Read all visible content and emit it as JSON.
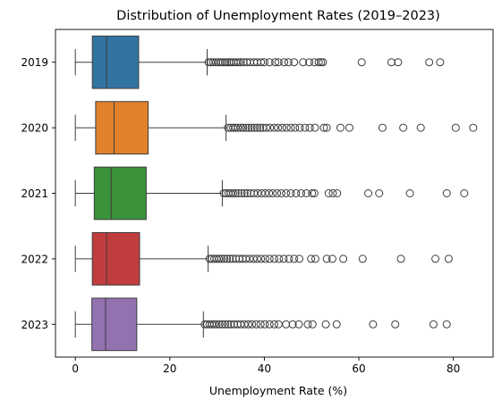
{
  "chart_data": {
    "type": "boxplot",
    "orientation": "horizontal",
    "title": "Distribution of Unemployment Rates (2019–2023)",
    "xlabel": "Unemployment Rate (%)",
    "ylabel": "",
    "xlim": [
      -4.2,
      88.4
    ],
    "xticks": [
      0,
      20,
      40,
      60,
      80
    ],
    "grid": false,
    "categories": [
      "2019",
      "2020",
      "2021",
      "2022",
      "2023"
    ],
    "series": [
      {
        "category": "2019",
        "color": "#3274a1",
        "whisker_low": 0,
        "q1": 3.6,
        "median": 6.6,
        "q3": 13.4,
        "whisker_high": 27.9,
        "outliers": [
          28.2,
          28.7,
          29.2,
          29.8,
          30.3,
          30.8,
          31.2,
          31.7,
          32.1,
          32.6,
          33.0,
          33.5,
          34.0,
          34.5,
          35.0,
          35.6,
          36.3,
          37.0,
          37.8,
          38.5,
          39.3,
          40.0,
          41.1,
          42.3,
          43.0,
          44.2,
          45.1,
          46.3,
          48.2,
          49.5,
          50.6,
          51.5,
          52.0,
          52.4,
          60.6,
          66.9,
          68.3,
          74.9,
          77.2
        ]
      },
      {
        "category": "2020",
        "color": "#e1812c",
        "whisker_low": 0,
        "q1": 4.3,
        "median": 8.2,
        "q3": 15.4,
        "whisker_high": 31.9,
        "outliers": [
          32.3,
          32.9,
          33.4,
          33.9,
          34.4,
          35.0,
          35.5,
          36.1,
          36.7,
          37.3,
          37.9,
          38.5,
          39.1,
          39.7,
          40.4,
          41.2,
          42.1,
          42.9,
          43.8,
          44.7,
          45.6,
          46.5,
          47.5,
          48.6,
          49.6,
          50.7,
          52.6,
          53.2,
          56.1,
          58.0,
          65.0,
          69.4,
          73.1,
          80.5,
          84.2
        ]
      },
      {
        "category": "2021",
        "color": "#3a923a",
        "whisker_low": 0,
        "q1": 4.0,
        "median": 7.6,
        "q3": 15.0,
        "whisker_high": 31.1,
        "outliers": [
          31.4,
          31.9,
          32.4,
          32.9,
          33.4,
          33.9,
          34.5,
          35.2,
          35.8,
          36.4,
          37.1,
          37.8,
          38.6,
          39.4,
          40.2,
          41.0,
          41.8,
          42.7,
          43.6,
          44.6,
          45.6,
          46.7,
          47.8,
          48.9,
          50.1,
          50.6,
          53.6,
          54.5,
          55.4,
          62.0,
          64.3,
          70.8,
          78.6,
          82.3
        ]
      },
      {
        "category": "2022",
        "color": "#c03d3e",
        "whisker_low": 0,
        "q1": 3.6,
        "median": 6.6,
        "q3": 13.6,
        "whisker_high": 28.1,
        "outliers": [
          28.4,
          28.9,
          29.4,
          29.9,
          30.4,
          30.9,
          31.5,
          32.1,
          32.7,
          33.3,
          34.0,
          34.7,
          35.4,
          36.1,
          36.9,
          37.7,
          38.5,
          39.3,
          40.2,
          41.1,
          42.1,
          43.1,
          44.1,
          45.2,
          46.3,
          47.4,
          49.9,
          50.8,
          53.2,
          54.4,
          56.7,
          60.8,
          68.9,
          76.2,
          79.0
        ]
      },
      {
        "category": "2023",
        "color": "#9372b2",
        "whisker_low": 0,
        "q1": 3.5,
        "median": 6.4,
        "q3": 13.0,
        "whisker_high": 27.1,
        "outliers": [
          27.4,
          27.9,
          28.4,
          28.9,
          29.4,
          29.9,
          30.5,
          31.1,
          31.7,
          32.3,
          32.9,
          33.6,
          34.3,
          35.0,
          35.8,
          36.6,
          37.4,
          38.3,
          39.2,
          40.1,
          41.1,
          42.1,
          43.0,
          44.6,
          46.0,
          47.3,
          49.2,
          50.2,
          53.0,
          55.3,
          63.0,
          67.7,
          75.8,
          78.6
        ]
      }
    ]
  }
}
